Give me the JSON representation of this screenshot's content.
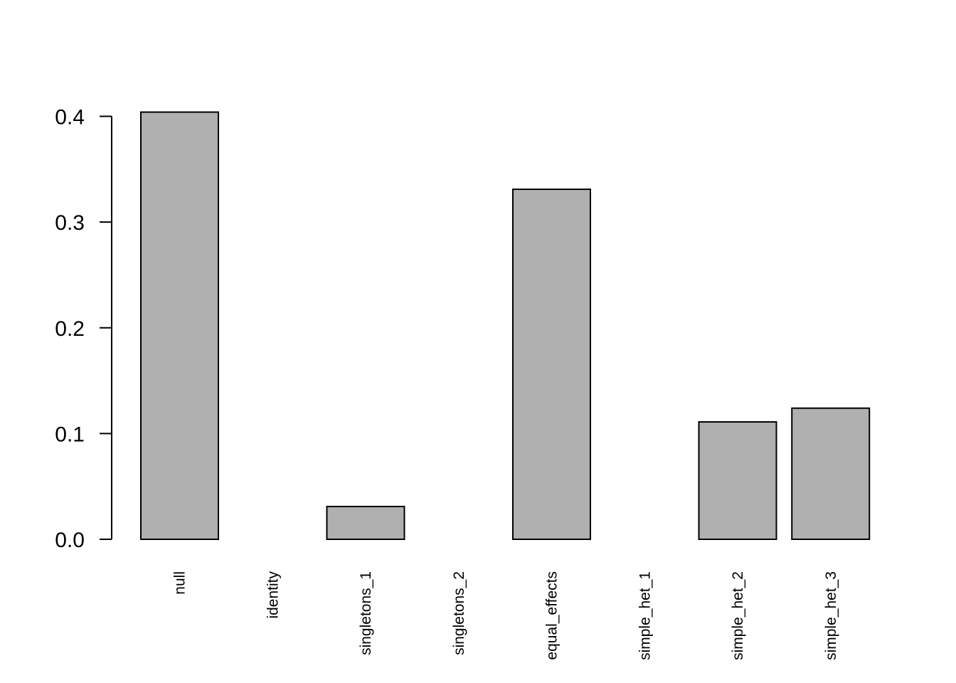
{
  "chart_data": {
    "type": "bar",
    "title": "",
    "xlabel": "",
    "ylabel": "",
    "categories": [
      "null",
      "identity",
      "singletons_1",
      "singletons_2",
      "equal_effects",
      "simple_het_1",
      "simple_het_2",
      "simple_het_3"
    ],
    "values": [
      0.404,
      0.0,
      0.031,
      0.0,
      0.331,
      0.0,
      0.111,
      0.124
    ],
    "ylim": [
      0,
      0.4
    ],
    "yticks": [
      0.0,
      0.1,
      0.2,
      0.3,
      0.4
    ],
    "ytick_labels": [
      "0.0",
      "0.1",
      "0.2",
      "0.3",
      "0.4"
    ],
    "grid": false,
    "bar_color": "#b0b0b0",
    "edge_color": "#000000"
  }
}
